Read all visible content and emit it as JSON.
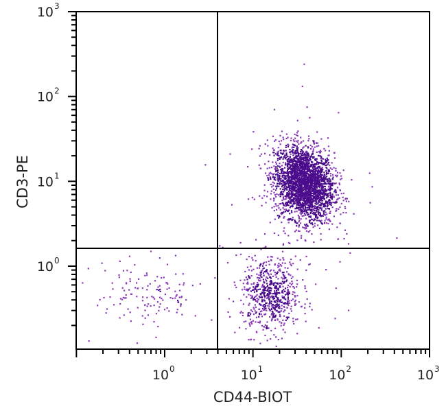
{
  "chart_data": {
    "type": "scatter",
    "title": "",
    "xlabel": "CD44-BIOT",
    "ylabel": "CD3-PE",
    "xscale": "log",
    "yscale": "log",
    "xlim": [
      0.1334,
      1000
    ],
    "ylim": [
      0.1334,
      1000
    ],
    "x_ticks": [
      {
        "base": "10",
        "exp": "0",
        "value": 1
      },
      {
        "base": "10",
        "exp": "1",
        "value": 10
      },
      {
        "base": "10",
        "exp": "2",
        "value": 100
      },
      {
        "base": "10",
        "exp": "3",
        "value": 1000
      }
    ],
    "y_ticks": [
      {
        "base": "10",
        "exp": "0",
        "value": 1
      },
      {
        "base": "10",
        "exp": "1",
        "value": 10
      },
      {
        "base": "10",
        "exp": "2",
        "value": 100
      },
      {
        "base": "10",
        "exp": "3",
        "value": 1000
      }
    ],
    "quadrant_gates": {
      "x": 4.2,
      "y": 1.6
    },
    "grid": false,
    "legend": null,
    "point_color_dense": "#4b0c8c",
    "point_color_sparse": "#8a3ab9",
    "populations": [
      {
        "name": "CD3+ CD44+ (upper right main cluster)",
        "center_x": 38,
        "center_y": 9.5,
        "log_sd_x": 0.17,
        "log_sd_y": 0.22,
        "count": 2600
      },
      {
        "name": "CD3- CD44+ (lower right cluster)",
        "center_x": 16,
        "center_y": 0.45,
        "log_sd_x": 0.17,
        "log_sd_y": 0.22,
        "count": 650
      },
      {
        "name": "CD3- CD44- (lower left sparse)",
        "center_x": 0.65,
        "center_y": 0.45,
        "log_sd_x": 0.3,
        "log_sd_y": 0.2,
        "count": 140
      },
      {
        "name": "scattered outliers",
        "center_x": 30,
        "center_y": 3,
        "log_sd_x": 0.45,
        "log_sd_y": 0.6,
        "count": 60
      }
    ],
    "outlier_points": [
      {
        "x": 38,
        "y": 240
      },
      {
        "x": 41,
        "y": 75
      },
      {
        "x": 5.5,
        "y": 21
      }
    ]
  }
}
